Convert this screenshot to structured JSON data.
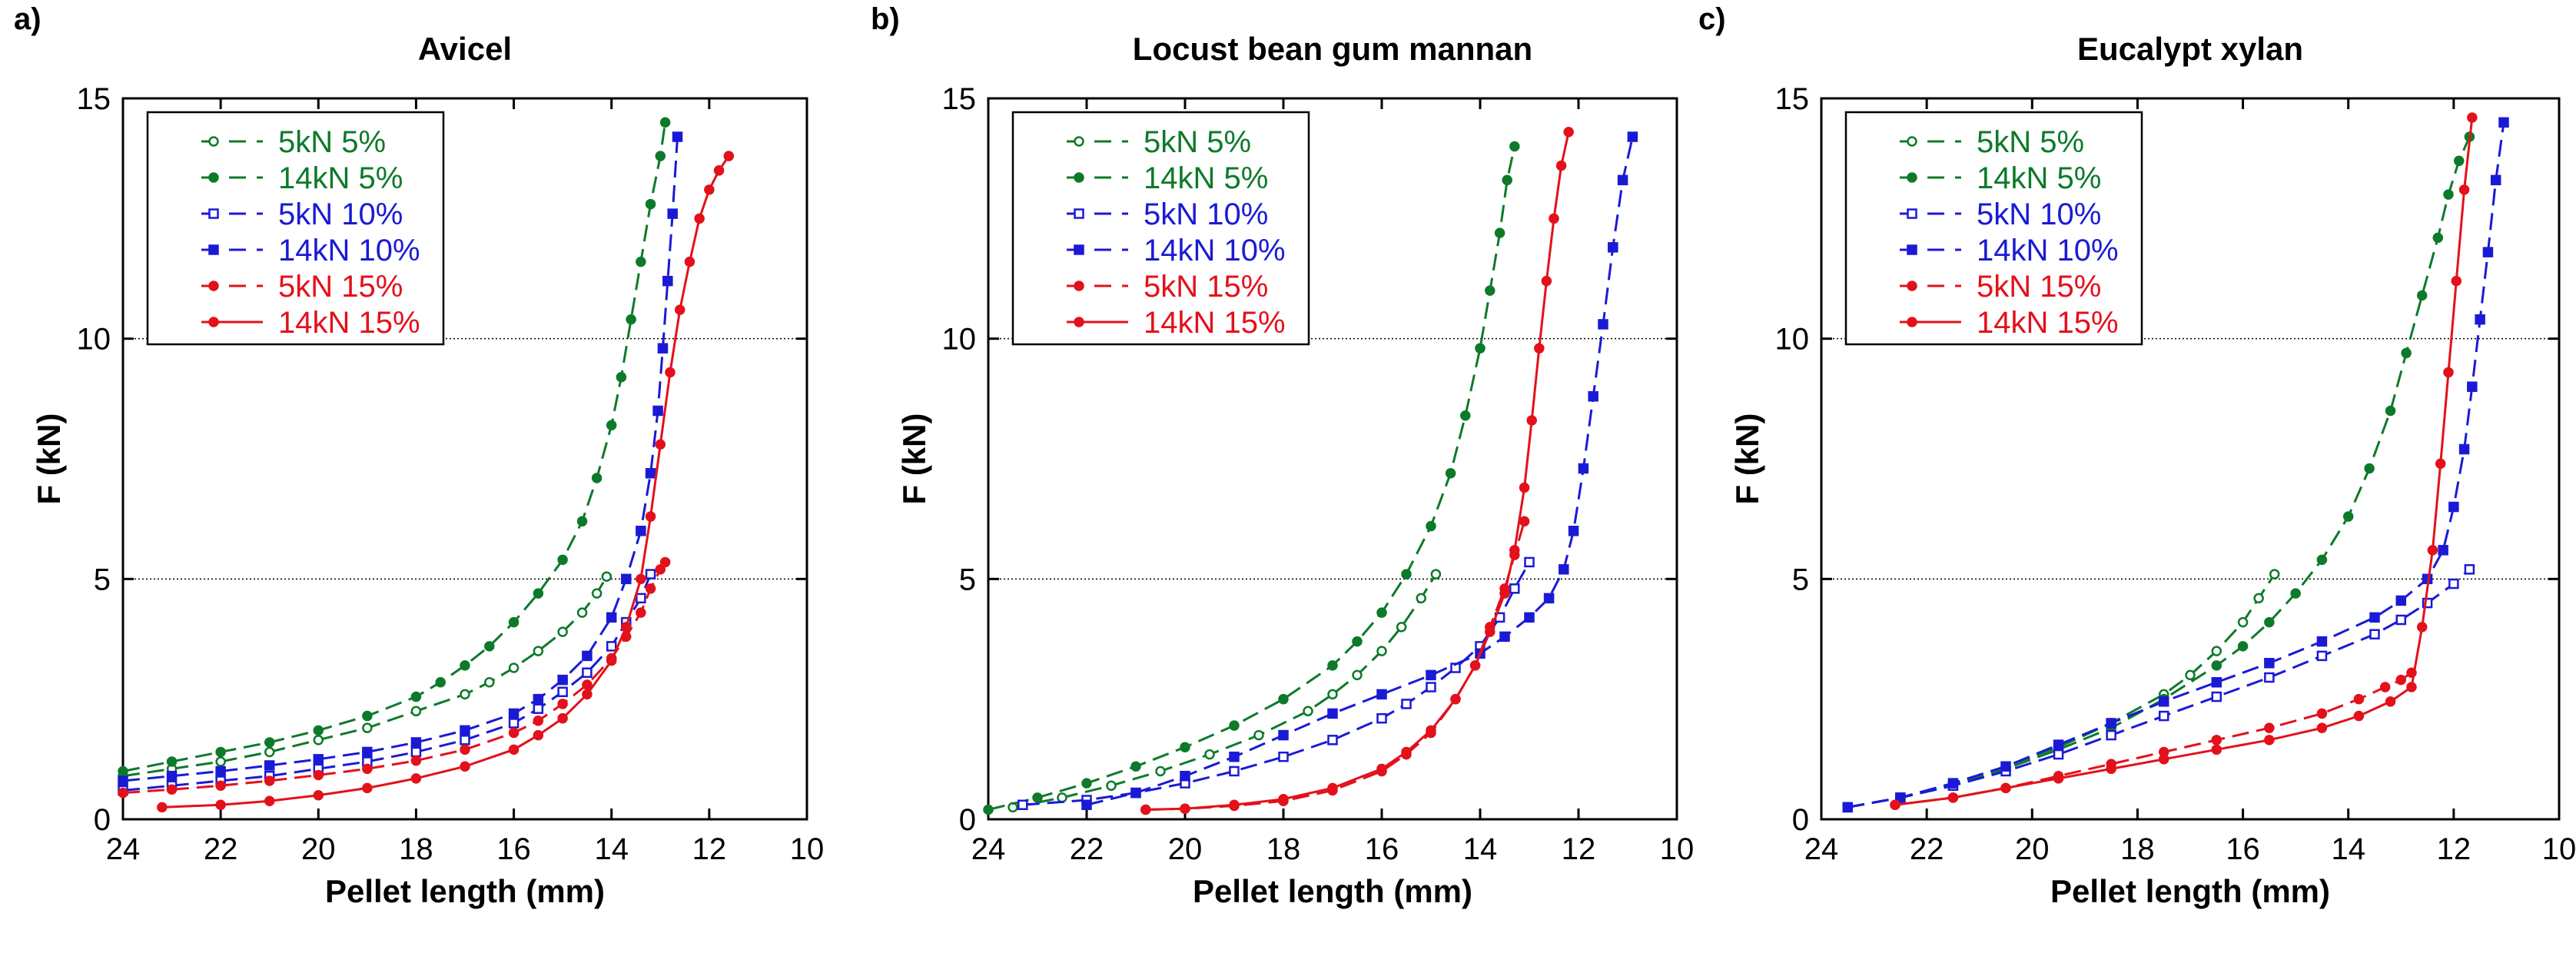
{
  "colors": {
    "green": "#0d7a2a",
    "blue": "#1a1ad6",
    "red": "#e3111b",
    "grid": "#000000",
    "axis": "#000000"
  },
  "chart_data": [
    {
      "type": "line",
      "panel_label": "a)",
      "title": "Avicel",
      "xlabel": "Pellet length (mm)",
      "ylabel": "F (kN)",
      "xlim": [
        24,
        10
      ],
      "ylim": [
        0,
        15
      ],
      "xticks": [
        24,
        22,
        20,
        18,
        16,
        14,
        12,
        10
      ],
      "yticks": [
        0,
        5,
        10,
        15
      ],
      "grid_y": [
        5,
        10
      ],
      "legend_position": "top-left",
      "series": [
        {
          "name": "5kN 5%",
          "color": "green",
          "marker": "circle-open",
          "dash": "dashed",
          "x": [
            24,
            23,
            22,
            21,
            20,
            19,
            18,
            17,
            16.5,
            16,
            15.5,
            15,
            14.6,
            14.3,
            14.1
          ],
          "y": [
            0.9,
            1.05,
            1.2,
            1.4,
            1.65,
            1.9,
            2.25,
            2.6,
            2.85,
            3.15,
            3.5,
            3.9,
            4.3,
            4.7,
            5.05
          ]
        },
        {
          "name": "14kN 5%",
          "color": "green",
          "marker": "circle-filled",
          "dash": "dashed",
          "x": [
            24,
            23,
            22,
            21,
            20,
            19,
            18,
            17.5,
            17,
            16.5,
            16,
            15.5,
            15,
            14.6,
            14.3,
            14.0,
            13.8,
            13.6,
            13.4,
            13.2,
            13.0,
            12.9
          ],
          "y": [
            1.0,
            1.2,
            1.4,
            1.6,
            1.85,
            2.15,
            2.55,
            2.85,
            3.2,
            3.6,
            4.1,
            4.7,
            5.4,
            6.2,
            7.1,
            8.2,
            9.2,
            10.4,
            11.6,
            12.8,
            13.8,
            14.5
          ]
        },
        {
          "name": "5kN 10%",
          "color": "blue",
          "marker": "square-open",
          "dash": "dashed",
          "x": [
            24,
            23,
            22,
            21,
            20,
            19,
            18,
            17,
            16,
            15.5,
            15,
            14.5,
            14,
            13.7,
            13.4,
            13.2
          ],
          "y": [
            0.6,
            0.7,
            0.8,
            0.9,
            1.05,
            1.2,
            1.4,
            1.65,
            2.0,
            2.3,
            2.65,
            3.05,
            3.6,
            4.1,
            4.6,
            5.1
          ]
        },
        {
          "name": "14kN 10%",
          "color": "blue",
          "marker": "square-filled",
          "dash": "dashed",
          "x": [
            24,
            23,
            22,
            21,
            20,
            19,
            18,
            17,
            16,
            15.5,
            15,
            14.5,
            14,
            13.7,
            13.4,
            13.2,
            13.05,
            12.95,
            12.85,
            12.75,
            12.65
          ],
          "y": [
            0.8,
            0.9,
            1.0,
            1.12,
            1.25,
            1.4,
            1.6,
            1.85,
            2.2,
            2.5,
            2.9,
            3.4,
            4.2,
            5.0,
            6.0,
            7.2,
            8.5,
            9.8,
            11.2,
            12.6,
            14.2
          ]
        },
        {
          "name": "5kN 15%",
          "color": "red",
          "marker": "circle-filled",
          "dash": "dashed",
          "x": [
            24,
            23,
            22,
            21,
            20,
            19,
            18,
            17,
            16,
            15.5,
            15,
            14.5,
            14,
            13.7,
            13.4,
            13.2,
            13.0,
            12.9
          ],
          "y": [
            0.55,
            0.62,
            0.7,
            0.8,
            0.92,
            1.05,
            1.22,
            1.45,
            1.8,
            2.05,
            2.4,
            2.8,
            3.35,
            3.8,
            4.3,
            4.8,
            5.2,
            5.35
          ]
        },
        {
          "name": "14kN 15%",
          "color": "red",
          "marker": "circle-filled",
          "dash": "solid",
          "x": [
            23.2,
            22,
            21,
            20,
            19,
            18,
            17,
            16,
            15.5,
            15,
            14.5,
            14,
            13.7,
            13.4,
            13.2,
            13.0,
            12.8,
            12.6,
            12.4,
            12.2,
            12.0,
            11.8,
            11.6
          ],
          "y": [
            0.25,
            0.3,
            0.38,
            0.5,
            0.65,
            0.85,
            1.1,
            1.45,
            1.75,
            2.1,
            2.6,
            3.3,
            4.0,
            5.0,
            6.3,
            7.8,
            9.3,
            10.6,
            11.6,
            12.5,
            13.1,
            13.5,
            13.8
          ]
        }
      ]
    },
    {
      "type": "line",
      "panel_label": "b)",
      "title": "Locust bean gum mannan",
      "xlabel": "Pellet length (mm)",
      "ylabel": "F (kN)",
      "xlim": [
        24,
        10
      ],
      "ylim": [
        0,
        15
      ],
      "xticks": [
        24,
        22,
        20,
        18,
        16,
        14,
        12,
        10
      ],
      "yticks": [
        0,
        5,
        10,
        15
      ],
      "grid_y": [
        5,
        10
      ],
      "legend_position": "top-left",
      "series": [
        {
          "name": "5kN 5%",
          "color": "green",
          "marker": "circle-open",
          "dash": "dashed",
          "x": [
            23.5,
            22.5,
            21.5,
            20.5,
            19.5,
            18.5,
            17.5,
            17,
            16.5,
            16,
            15.6,
            15.2,
            14.9
          ],
          "y": [
            0.25,
            0.45,
            0.7,
            1.0,
            1.35,
            1.75,
            2.25,
            2.6,
            3.0,
            3.5,
            4.0,
            4.6,
            5.1
          ]
        },
        {
          "name": "14kN 5%",
          "color": "green",
          "marker": "circle-filled",
          "dash": "dashed",
          "x": [
            24,
            23,
            22,
            21,
            20,
            19,
            18,
            17,
            16.5,
            16,
            15.5,
            15,
            14.6,
            14.3,
            14.0,
            13.8,
            13.6,
            13.45,
            13.3
          ],
          "y": [
            0.2,
            0.45,
            0.75,
            1.1,
            1.5,
            1.95,
            2.5,
            3.2,
            3.7,
            4.3,
            5.1,
            6.1,
            7.2,
            8.4,
            9.8,
            11.0,
            12.2,
            13.3,
            14.0
          ]
        },
        {
          "name": "5kN 10%",
          "color": "blue",
          "marker": "square-open",
          "dash": "dashed",
          "x": [
            23.3,
            22,
            21,
            20,
            19,
            18,
            17,
            16,
            15.5,
            15,
            14.5,
            14,
            13.6,
            13.3,
            13.0
          ],
          "y": [
            0.3,
            0.4,
            0.55,
            0.75,
            1.0,
            1.3,
            1.65,
            2.1,
            2.4,
            2.75,
            3.15,
            3.6,
            4.2,
            4.8,
            5.35
          ]
        },
        {
          "name": "14kN 10%",
          "color": "blue",
          "marker": "square-filled",
          "dash": "dashed",
          "x": [
            22,
            21,
            20,
            19,
            18,
            17,
            16,
            15,
            14,
            13.5,
            13,
            12.6,
            12.3,
            12.1,
            11.9,
            11.7,
            11.5,
            11.3,
            11.1,
            10.9
          ],
          "y": [
            0.3,
            0.55,
            0.9,
            1.3,
            1.75,
            2.2,
            2.6,
            3.0,
            3.45,
            3.8,
            4.2,
            4.6,
            5.2,
            6.0,
            7.3,
            8.8,
            10.3,
            11.9,
            13.3,
            14.2
          ]
        },
        {
          "name": "5kN 15%",
          "color": "red",
          "marker": "circle-filled",
          "dash": "dashed",
          "x": [
            20.8,
            20,
            19,
            18,
            17,
            16,
            15.5,
            15,
            14.5,
            14.1,
            13.8,
            13.5,
            13.3,
            13.1
          ],
          "y": [
            0.2,
            0.22,
            0.28,
            0.38,
            0.6,
            1.0,
            1.35,
            1.8,
            2.5,
            3.2,
            4.0,
            4.8,
            5.5,
            6.2
          ]
        },
        {
          "name": "14kN 15%",
          "color": "red",
          "marker": "circle-filled",
          "dash": "solid",
          "x": [
            20.8,
            20,
            19,
            18,
            17,
            16,
            15.5,
            15,
            14.5,
            14.1,
            13.8,
            13.5,
            13.3,
            13.1,
            12.95,
            12.8,
            12.65,
            12.5,
            12.35,
            12.2
          ],
          "y": [
            0.2,
            0.22,
            0.3,
            0.42,
            0.65,
            1.05,
            1.4,
            1.85,
            2.5,
            3.2,
            3.9,
            4.7,
            5.6,
            6.9,
            8.3,
            9.8,
            11.2,
            12.5,
            13.6,
            14.3
          ]
        }
      ]
    },
    {
      "type": "line",
      "panel_label": "c)",
      "title": "Eucalypt xylan",
      "xlabel": "Pellet length (mm)",
      "ylabel": "F (kN)",
      "xlim": [
        24,
        10
      ],
      "ylim": [
        0,
        15
      ],
      "xticks": [
        24,
        22,
        20,
        18,
        16,
        14,
        12,
        10
      ],
      "yticks": [
        0,
        5,
        10,
        15
      ],
      "grid_y": [
        5,
        10
      ],
      "legend_position": "top-left",
      "series": [
        {
          "name": "5kN 5%",
          "color": "green",
          "marker": "circle-open",
          "dash": "dashed",
          "x": [
            23.5,
            22.5,
            21.5,
            20.5,
            19.5,
            18.5,
            17.5,
            17,
            16.5,
            16,
            15.7,
            15.4
          ],
          "y": [
            0.25,
            0.45,
            0.75,
            1.1,
            1.5,
            2.0,
            2.6,
            3.0,
            3.5,
            4.1,
            4.6,
            5.1
          ]
        },
        {
          "name": "14kN 5%",
          "color": "green",
          "marker": "circle-filled",
          "dash": "dashed",
          "x": [
            23.5,
            22.5,
            21.5,
            20.5,
            19.5,
            18.5,
            17.5,
            16.5,
            16,
            15.5,
            15,
            14.5,
            14,
            13.6,
            13.2,
            12.9,
            12.6,
            12.3,
            12.1,
            11.9,
            11.7
          ],
          "y": [
            0.25,
            0.45,
            0.7,
            1.05,
            1.45,
            1.9,
            2.5,
            3.2,
            3.6,
            4.1,
            4.7,
            5.4,
            6.3,
            7.3,
            8.5,
            9.7,
            10.9,
            12.1,
            13.0,
            13.7,
            14.2
          ]
        },
        {
          "name": "5kN 10%",
          "color": "blue",
          "marker": "square-open",
          "dash": "dashed",
          "x": [
            23.5,
            22.5,
            21.5,
            20.5,
            19.5,
            18.5,
            17.5,
            16.5,
            15.5,
            14.5,
            13.5,
            13,
            12.5,
            12.0,
            11.7
          ],
          "y": [
            0.25,
            0.45,
            0.7,
            1.0,
            1.35,
            1.75,
            2.15,
            2.55,
            2.95,
            3.4,
            3.85,
            4.15,
            4.5,
            4.9,
            5.2
          ]
        },
        {
          "name": "14kN 10%",
          "color": "blue",
          "marker": "square-filled",
          "dash": "dashed",
          "x": [
            23.5,
            22.5,
            21.5,
            20.5,
            19.5,
            18.5,
            17.5,
            16.5,
            15.5,
            14.5,
            13.5,
            13,
            12.5,
            12.2,
            12.0,
            11.8,
            11.65,
            11.5,
            11.35,
            11.2,
            11.05
          ],
          "y": [
            0.25,
            0.45,
            0.75,
            1.1,
            1.55,
            2.0,
            2.45,
            2.85,
            3.25,
            3.7,
            4.2,
            4.55,
            5.0,
            5.6,
            6.5,
            7.7,
            9.0,
            10.4,
            11.8,
            13.3,
            14.5
          ]
        },
        {
          "name": "5kN 15%",
          "color": "red",
          "marker": "circle-filled",
          "dash": "dashed",
          "x": [
            22.6,
            21.5,
            20.5,
            19.5,
            18.5,
            17.5,
            16.5,
            15.5,
            14.5,
            13.8,
            13.3,
            13.0,
            12.8
          ],
          "y": [
            0.3,
            0.45,
            0.65,
            0.9,
            1.15,
            1.4,
            1.65,
            1.9,
            2.2,
            2.5,
            2.75,
            2.9,
            3.05
          ]
        },
        {
          "name": "14kN 15%",
          "color": "red",
          "marker": "circle-filled",
          "dash": "solid",
          "x": [
            22.6,
            21.5,
            20.5,
            19.5,
            18.5,
            17.5,
            16.5,
            15.5,
            14.5,
            13.8,
            13.2,
            12.8,
            12.6,
            12.4,
            12.25,
            12.1,
            11.95,
            11.8,
            11.65
          ],
          "y": [
            0.3,
            0.45,
            0.65,
            0.85,
            1.05,
            1.25,
            1.45,
            1.65,
            1.9,
            2.15,
            2.45,
            2.75,
            4.0,
            5.6,
            7.4,
            9.3,
            11.2,
            13.1,
            14.6
          ]
        }
      ]
    }
  ]
}
